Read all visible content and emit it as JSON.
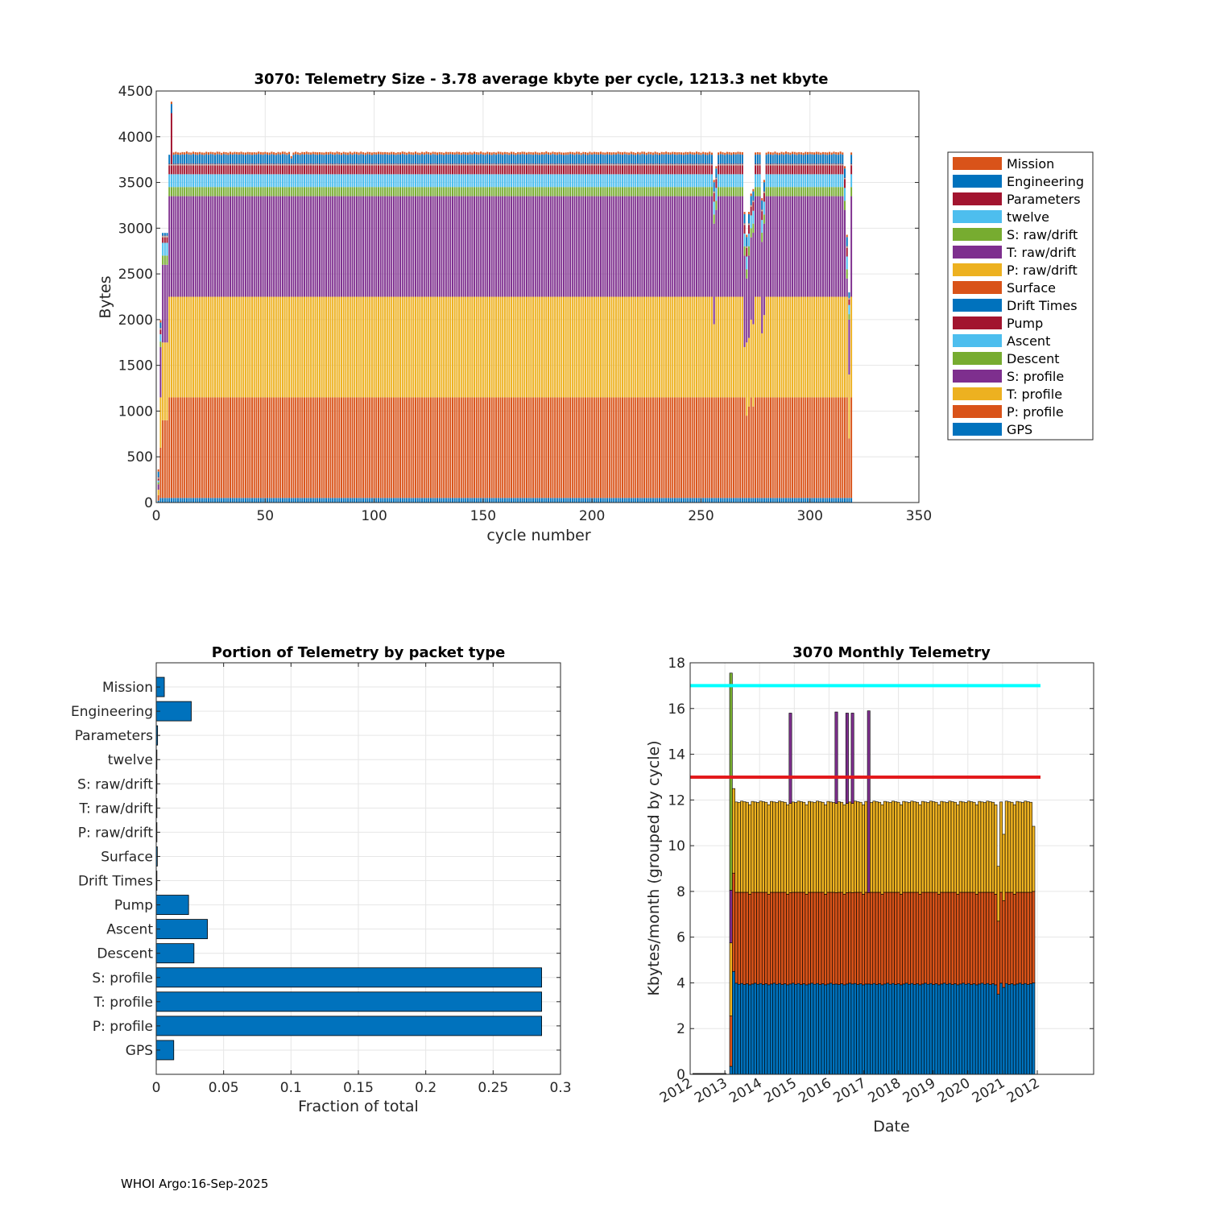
{
  "figure": {
    "footer": "WHOI Argo:16-Sep-2025"
  },
  "chart_data": [
    {
      "type": "bar",
      "stacked": true,
      "title": "3070: Telemetry Size - 3.78 average kbyte per cycle, 1213.3 net kbyte",
      "xlabel": "cycle number",
      "ylabel": "Bytes",
      "xlim": [
        0,
        350
      ],
      "ylim": [
        0,
        4500
      ],
      "xticks": [
        0,
        50,
        100,
        150,
        200,
        250,
        300,
        350
      ],
      "yticks": [
        0,
        500,
        1000,
        1500,
        2000,
        2500,
        3000,
        3500,
        4000,
        4500
      ],
      "grid": true,
      "legend_position": "outside-right",
      "cycles": {
        "first": 1,
        "last": 319
      },
      "series": [
        {
          "name": "GPS",
          "color": "#0072BD",
          "typical": 50
        },
        {
          "name": "P: profile",
          "color": "#D95319",
          "typical": 1100
        },
        {
          "name": "T: profile",
          "color": "#EDB120",
          "typical": 1100
        },
        {
          "name": "S: profile",
          "color": "#7E2F8E",
          "typical": 1100
        },
        {
          "name": "Descent",
          "color": "#77AC30",
          "typical": 100
        },
        {
          "name": "Ascent",
          "color": "#4DBEEE",
          "typical": 140
        },
        {
          "name": "Pump",
          "color": "#A2142F",
          "typical": 95
        },
        {
          "name": "Drift Times",
          "color": "#0072BD",
          "typical": 2
        },
        {
          "name": "Surface",
          "color": "#D95319",
          "typical": 3
        },
        {
          "name": "P: raw/drift",
          "color": "#EDB120",
          "typical": 2
        },
        {
          "name": "T: raw/drift",
          "color": "#7E2F8E",
          "typical": 2
        },
        {
          "name": "S: raw/drift",
          "color": "#77AC30",
          "typical": 2
        },
        {
          "name": "twelve",
          "color": "#4DBEEE",
          "typical": 2
        },
        {
          "name": "Parameters",
          "color": "#A2142F",
          "typical": 5
        },
        {
          "name": "Engineering",
          "color": "#0072BD",
          "typical": 100
        },
        {
          "name": "Mission",
          "color": "#D95319",
          "typical": 25
        }
      ],
      "special_cycles": [
        {
          "cycle": 1,
          "values": [
            20,
            60,
            60,
            60,
            20,
            20,
            20,
            2,
            3,
            2,
            2,
            2,
            2,
            5,
            60,
            25
          ]
        },
        {
          "cycle": 2,
          "values": [
            50,
            550,
            550,
            550,
            60,
            80,
            50,
            2,
            3,
            2,
            2,
            2,
            2,
            5,
            60,
            25
          ]
        },
        {
          "cycle": 3,
          "values": [
            50,
            850,
            850,
            850,
            100,
            140,
            60,
            2,
            3,
            2,
            2,
            2,
            2,
            5,
            30,
            0
          ]
        },
        {
          "cycle": 4,
          "values": [
            50,
            850,
            850,
            850,
            100,
            140,
            60,
            2,
            3,
            2,
            2,
            2,
            2,
            5,
            30,
            0
          ]
        },
        {
          "cycle": 5,
          "values": [
            50,
            850,
            850,
            850,
            100,
            140,
            60,
            2,
            3,
            2,
            2,
            2,
            2,
            5,
            30,
            0
          ]
        },
        {
          "cycle": 6,
          "values": [
            50,
            1100,
            1100,
            1100,
            100,
            140,
            95,
            2,
            3,
            2,
            2,
            2,
            2,
            5,
            100,
            0
          ]
        },
        {
          "cycle": 7,
          "values": [
            50,
            1100,
            1100,
            1100,
            100,
            140,
            95,
            2,
            3,
            2,
            2,
            2,
            2,
            560,
            100,
            25
          ]
        },
        {
          "cycle": 8,
          "values": [
            50,
            1100,
            1100,
            1100,
            100,
            140,
            95,
            2,
            3,
            2,
            2,
            2,
            2,
            5,
            100,
            25
          ]
        },
        {
          "cycle": 62,
          "values": [
            50,
            1100,
            1100,
            1100,
            100,
            140,
            95,
            2,
            3,
            2,
            2,
            2,
            2,
            5,
            60,
            25
          ]
        },
        {
          "cycle": 188,
          "values": [
            50,
            1100,
            1100,
            1100,
            100,
            140,
            95,
            2,
            3,
            2,
            2,
            2,
            2,
            5,
            100,
            25
          ]
        },
        {
          "cycle": 256,
          "values": [
            50,
            1100,
            800,
            1100,
            100,
            140,
            95,
            2,
            3,
            2,
            2,
            2,
            2,
            5,
            100,
            25
          ]
        },
        {
          "cycle": 257,
          "values": [
            50,
            1100,
            1100,
            950,
            100,
            140,
            95,
            2,
            3,
            2,
            2,
            2,
            2,
            5,
            100,
            25
          ]
        },
        {
          "cycle": 270,
          "values": [
            50,
            1100,
            550,
            1000,
            100,
            140,
            95,
            2,
            3,
            2,
            2,
            2,
            2,
            5,
            100,
            25
          ]
        },
        {
          "cycle": 271,
          "values": [
            50,
            900,
            800,
            700,
            100,
            140,
            95,
            2,
            3,
            2,
            2,
            2,
            2,
            5,
            100,
            25
          ]
        },
        {
          "cycle": 272,
          "values": [
            50,
            1000,
            750,
            900,
            100,
            140,
            95,
            2,
            3,
            2,
            2,
            2,
            2,
            5,
            100,
            25
          ]
        },
        {
          "cycle": 273,
          "values": [
            50,
            1100,
            850,
            900,
            100,
            140,
            95,
            2,
            3,
            2,
            2,
            2,
            2,
            5,
            100,
            25
          ]
        },
        {
          "cycle": 274,
          "values": [
            50,
            1000,
            900,
            1000,
            100,
            140,
            95,
            2,
            3,
            2,
            2,
            2,
            2,
            5,
            100,
            25
          ]
        },
        {
          "cycle": 275,
          "values": [
            50,
            1100,
            1100,
            1100,
            100,
            140,
            95,
            2,
            3,
            2,
            2,
            2,
            2,
            5,
            100,
            25
          ]
        },
        {
          "cycle": 278,
          "values": [
            50,
            1100,
            700,
            1000,
            100,
            140,
            95,
            2,
            3,
            2,
            2,
            2,
            2,
            5,
            100,
            25
          ]
        },
        {
          "cycle": 279,
          "values": [
            50,
            1100,
            900,
            1000,
            100,
            140,
            95,
            2,
            3,
            2,
            2,
            2,
            2,
            5,
            100,
            25
          ]
        },
        {
          "cycle": 316,
          "values": [
            50,
            1100,
            1100,
            950,
            100,
            140,
            95,
            2,
            3,
            2,
            2,
            2,
            2,
            5,
            100,
            25
          ]
        },
        {
          "cycle": 317,
          "values": [
            50,
            1100,
            1100,
            200,
            100,
            140,
            95,
            2,
            3,
            2,
            2,
            2,
            2,
            5,
            100,
            25
          ]
        },
        {
          "cycle": 318,
          "values": [
            50,
            650,
            700,
            600,
            60,
            100,
            60,
            2,
            3,
            2,
            2,
            2,
            2,
            5,
            60,
            0
          ]
        },
        {
          "cycle": 319,
          "values": [
            50,
            1100,
            1100,
            1100,
            100,
            140,
            95,
            2,
            3,
            2,
            2,
            2,
            2,
            5,
            100,
            25
          ]
        }
      ]
    },
    {
      "type": "bar",
      "orientation": "horizontal",
      "title": "Portion of Telemetry by packet type",
      "xlabel": "Fraction of total",
      "xlim": [
        0,
        0.3
      ],
      "xticks": [
        0,
        0.05,
        0.1,
        0.15,
        0.2,
        0.25,
        0.3
      ],
      "xtick_labels": [
        "0",
        "0.05",
        "0.1",
        "0.15",
        "0.2",
        "0.25",
        "0.3"
      ],
      "color": "#0072BD",
      "grid": true,
      "categories": [
        "GPS",
        "P: profile",
        "T: profile",
        "S: profile",
        "Descent",
        "Ascent",
        "Pump",
        "Drift Times",
        "Surface",
        "P: raw/drift",
        "T: raw/drift",
        "S: raw/drift",
        "twelve",
        "Parameters",
        "Engineering",
        "Mission"
      ],
      "values": [
        0.013,
        0.286,
        0.286,
        0.286,
        0.028,
        0.038,
        0.024,
        0.0005,
        0.0008,
        0.0005,
        0.0005,
        0.0005,
        0.0005,
        0.001,
        0.026,
        0.006
      ]
    },
    {
      "type": "bar",
      "stacked": true,
      "title": "3070 Monthly Telemetry",
      "xlabel": "Date",
      "ylabel": "Kbytes/month (grouped by cycle)",
      "ylim": [
        0,
        18
      ],
      "yticks": [
        0,
        2,
        4,
        6,
        8,
        10,
        12,
        14,
        16,
        18
      ],
      "xtick_labels": [
        "2012",
        "2013",
        "2014",
        "2015",
        "2016",
        "2017",
        "2018",
        "2019",
        "2020",
        "2021",
        "2012"
      ],
      "grid": true,
      "n_months": 113,
      "series": [
        {
          "name": "P: profile",
          "color": "#0072BD",
          "typical": 3.95
        },
        {
          "name": "T: profile",
          "color": "#D95319",
          "typical": 4.0
        },
        {
          "name": "S: profile",
          "color": "#EDB120",
          "typical": 3.95
        }
      ],
      "spikes": [
        {
          "month": 0,
          "values": [
            0.35,
            2.2,
            3.2
          ],
          "extra": [
            2.3,
            9.5
          ],
          "extra_colors": [
            "#7E2F8E",
            "#77AC30"
          ]
        },
        {
          "month": 1,
          "values": [
            4.5,
            4.3,
            3.7
          ],
          "extra": [
            0
          ],
          "extra_colors": []
        },
        {
          "month": 22,
          "values": [
            3.95,
            4.0,
            3.9
          ],
          "extra": [
            3.95
          ],
          "extra_colors": [
            "#7E2F8E"
          ]
        },
        {
          "month": 39,
          "values": [
            3.95,
            4.0,
            3.9
          ],
          "extra": [
            4.0
          ],
          "extra_colors": [
            "#7E2F8E"
          ]
        },
        {
          "month": 43,
          "values": [
            3.95,
            4.0,
            3.9
          ],
          "extra": [
            3.95
          ],
          "extra_colors": [
            "#7E2F8E"
          ]
        },
        {
          "month": 45,
          "values": [
            3.95,
            4.0,
            3.9
          ],
          "extra": [
            3.95
          ],
          "extra_colors": [
            "#7E2F8E"
          ]
        },
        {
          "month": 51,
          "values": [
            3.95,
            4.0,
            0.0
          ],
          "extra": [
            7.95
          ],
          "extra_colors": [
            "#7E2F8E"
          ]
        }
      ],
      "dips": [
        {
          "month": 99,
          "values": [
            3.5,
            3.2,
            2.4
          ]
        },
        {
          "month": 101,
          "values": [
            3.8,
            3.8,
            2.9
          ]
        },
        {
          "month": 112,
          "values": [
            4.0,
            4.0,
            2.85
          ]
        }
      ],
      "reference_lines": [
        {
          "y": 17,
          "color": "#00FFFF"
        },
        {
          "y": 13,
          "color": "#E31A1C"
        }
      ]
    }
  ]
}
